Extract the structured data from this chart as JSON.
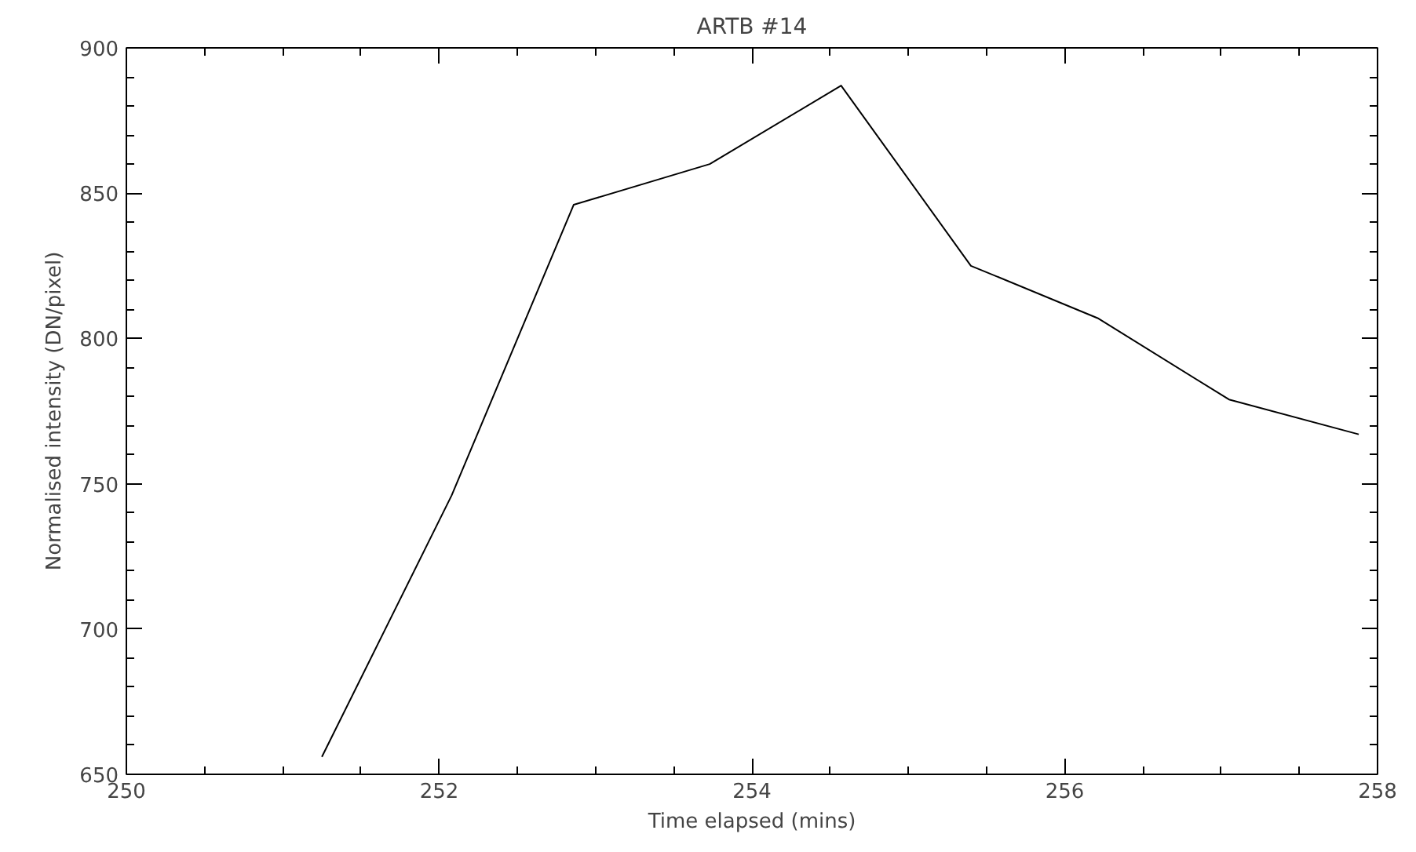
{
  "chart_data": {
    "type": "line",
    "title": "ARTB #14",
    "xlabel": "Time elapsed (mins)",
    "ylabel": "Normalised intensity (DN/pixel)",
    "x": [
      251.25,
      252.08,
      252.86,
      253.73,
      254.57,
      255.4,
      256.21,
      257.05,
      257.88
    ],
    "series": [
      {
        "color": "#000000",
        "values": [
          656,
          746,
          846,
          860,
          887,
          825,
          807,
          779,
          767
        ]
      }
    ],
    "xlim": [
      250,
      258
    ],
    "xticks": [
      250,
      252,
      254,
      256,
      258
    ],
    "ylim": [
      650,
      900
    ],
    "yticks": [
      650,
      700,
      750,
      800,
      850,
      900
    ],
    "grid": false,
    "marker": "none",
    "line_style": "solid"
  }
}
